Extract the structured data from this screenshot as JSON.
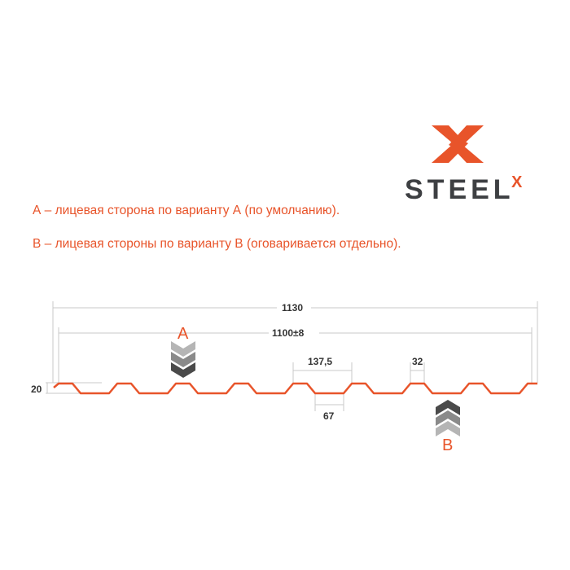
{
  "logo": {
    "text": "STEEL",
    "superscript": "X",
    "brand_color": "#e8542a",
    "text_color": "#3d3f42"
  },
  "notes": {
    "a": "А – лицевая сторона по варианту А (по умолчанию).",
    "b": "В – лицевая стороны по варианту В (оговаривается отдельно)."
  },
  "dimensions": {
    "total_width": "1130",
    "useful_width": "1100±8",
    "pitch": "137,5",
    "top_width": "32",
    "bottom_width": "67",
    "height": "20"
  },
  "faces": {
    "a": "A",
    "b": "B"
  },
  "colors": {
    "profile": "#e8542a",
    "dimension_lines": "#c8c8c8",
    "chevron_light": "#b5b5b5",
    "chevron_mid": "#8a8a8a",
    "chevron_dark": "#4a4a4a"
  }
}
